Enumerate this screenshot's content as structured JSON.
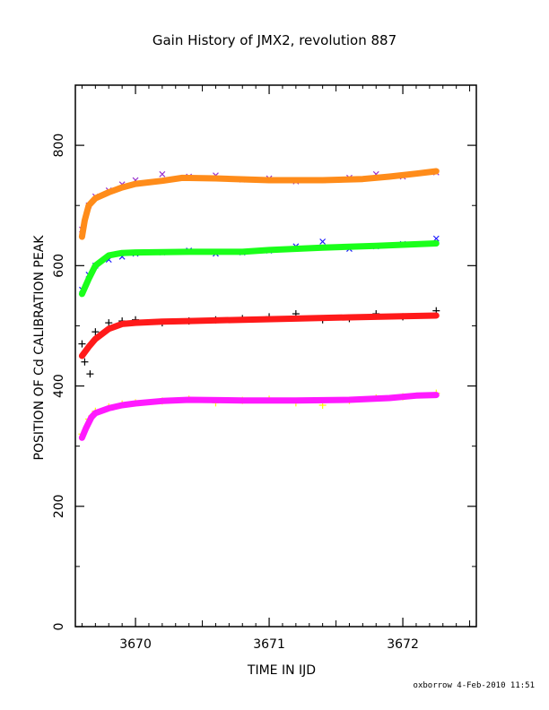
{
  "title": "Gain History of JMX2, revolution 887",
  "footer": "oxborrow  4-Feb-2010 11:51",
  "chart_data": {
    "type": "scatter",
    "title": "Gain History of JMX2, revolution 887",
    "xlabel": "TIME IN IJD",
    "ylabel": "POSITION OF Cd CALIBRATION PEAK",
    "xlim": [
      3669.55,
      3672.55
    ],
    "ylim": [
      0,
      900
    ],
    "x_ticks": [
      3670,
      3671,
      3672
    ],
    "x_tick_labels": [
      "3670",
      "3671",
      "3672"
    ],
    "y_ticks": [
      0,
      200,
      400,
      600,
      800
    ],
    "y_tick_labels": [
      "0",
      "200",
      "400",
      "600",
      "800"
    ],
    "grid": false,
    "legend": "none",
    "series": [
      {
        "marker": "x",
        "color": "#9a32cd",
        "x": [
          3669.6,
          3669.65,
          3669.7,
          3669.8,
          3669.9,
          3670.0,
          3670.2,
          3670.4,
          3670.6,
          3670.8,
          3671.0,
          3671.2,
          3671.4,
          3671.6,
          3671.8,
          3672.0,
          3672.25
        ],
        "y": [
          660,
          700,
          715,
          725,
          735,
          742,
          752,
          748,
          750,
          743,
          745,
          740,
          742,
          746,
          752,
          748,
          755
        ]
      },
      {
        "marker": "line",
        "color": "#ff8c1a",
        "x": [
          3669.6,
          3669.62,
          3669.65,
          3669.7,
          3669.8,
          3669.9,
          3670.0,
          3670.2,
          3670.35,
          3670.6,
          3671.0,
          3671.4,
          3671.7,
          3671.9,
          3672.1,
          3672.25
        ],
        "y": [
          648,
          675,
          700,
          712,
          722,
          730,
          736,
          741,
          746,
          745,
          742,
          742,
          744,
          748,
          753,
          757
        ]
      },
      {
        "marker": "x",
        "color": "#1a1aff",
        "x": [
          3669.6,
          3669.65,
          3669.7,
          3669.8,
          3669.9,
          3670.0,
          3670.2,
          3670.4,
          3670.6,
          3670.8,
          3671.0,
          3671.2,
          3671.4,
          3671.6,
          3671.8,
          3672.0,
          3672.25
        ],
        "y": [
          560,
          585,
          600,
          610,
          615,
          620,
          622,
          625,
          620,
          622,
          625,
          632,
          640,
          628,
          632,
          636,
          645
        ]
      },
      {
        "marker": "line",
        "color": "#1aff1a",
        "x": [
          3669.6,
          3669.65,
          3669.7,
          3669.8,
          3669.9,
          3670.0,
          3670.4,
          3670.8,
          3671.0,
          3671.4,
          3671.8,
          3672.25
        ],
        "y": [
          553,
          578,
          600,
          617,
          621,
          622,
          623,
          623,
          626,
          630,
          633,
          637
        ]
      },
      {
        "marker": "+",
        "color": "#000000",
        "x": [
          3669.6,
          3669.62,
          3669.66,
          3669.7,
          3669.8,
          3669.9,
          3670.0,
          3670.2,
          3670.4,
          3670.6,
          3670.8,
          3671.0,
          3671.2,
          3671.4,
          3671.6,
          3671.8,
          3672.0,
          3672.25
        ],
        "y": [
          470,
          440,
          420,
          490,
          505,
          508,
          510,
          505,
          508,
          510,
          512,
          515,
          520,
          510,
          512,
          520,
          515,
          525
        ]
      },
      {
        "marker": "line",
        "color": "#ff1a1a",
        "x": [
          3669.6,
          3669.65,
          3669.7,
          3669.8,
          3669.9,
          3670.0,
          3670.2,
          3670.4,
          3670.8,
          3671.2,
          3671.6,
          3672.0,
          3672.25
        ],
        "y": [
          450,
          465,
          478,
          495,
          503,
          505,
          507,
          508,
          510,
          512,
          514,
          516,
          517
        ]
      },
      {
        "marker": "+",
        "color": "#ffff00",
        "x": [
          3669.6,
          3669.65,
          3669.7,
          3669.8,
          3669.9,
          3670.0,
          3670.2,
          3670.4,
          3670.6,
          3670.8,
          3671.0,
          3671.2,
          3671.4,
          3671.6,
          3671.8,
          3672.0,
          3672.25
        ],
        "y": [
          320,
          345,
          358,
          365,
          370,
          372,
          375,
          378,
          372,
          376,
          378,
          372,
          368,
          376,
          380,
          382,
          388
        ]
      },
      {
        "marker": "line",
        "color": "#ff1aff",
        "x": [
          3669.6,
          3669.63,
          3669.67,
          3669.7,
          3669.8,
          3669.9,
          3670.0,
          3670.2,
          3670.4,
          3670.8,
          3671.2,
          3671.6,
          3671.9,
          3672.1,
          3672.25
        ],
        "y": [
          314,
          330,
          348,
          355,
          363,
          368,
          371,
          375,
          377,
          376,
          376,
          377,
          380,
          384,
          385
        ]
      }
    ]
  }
}
